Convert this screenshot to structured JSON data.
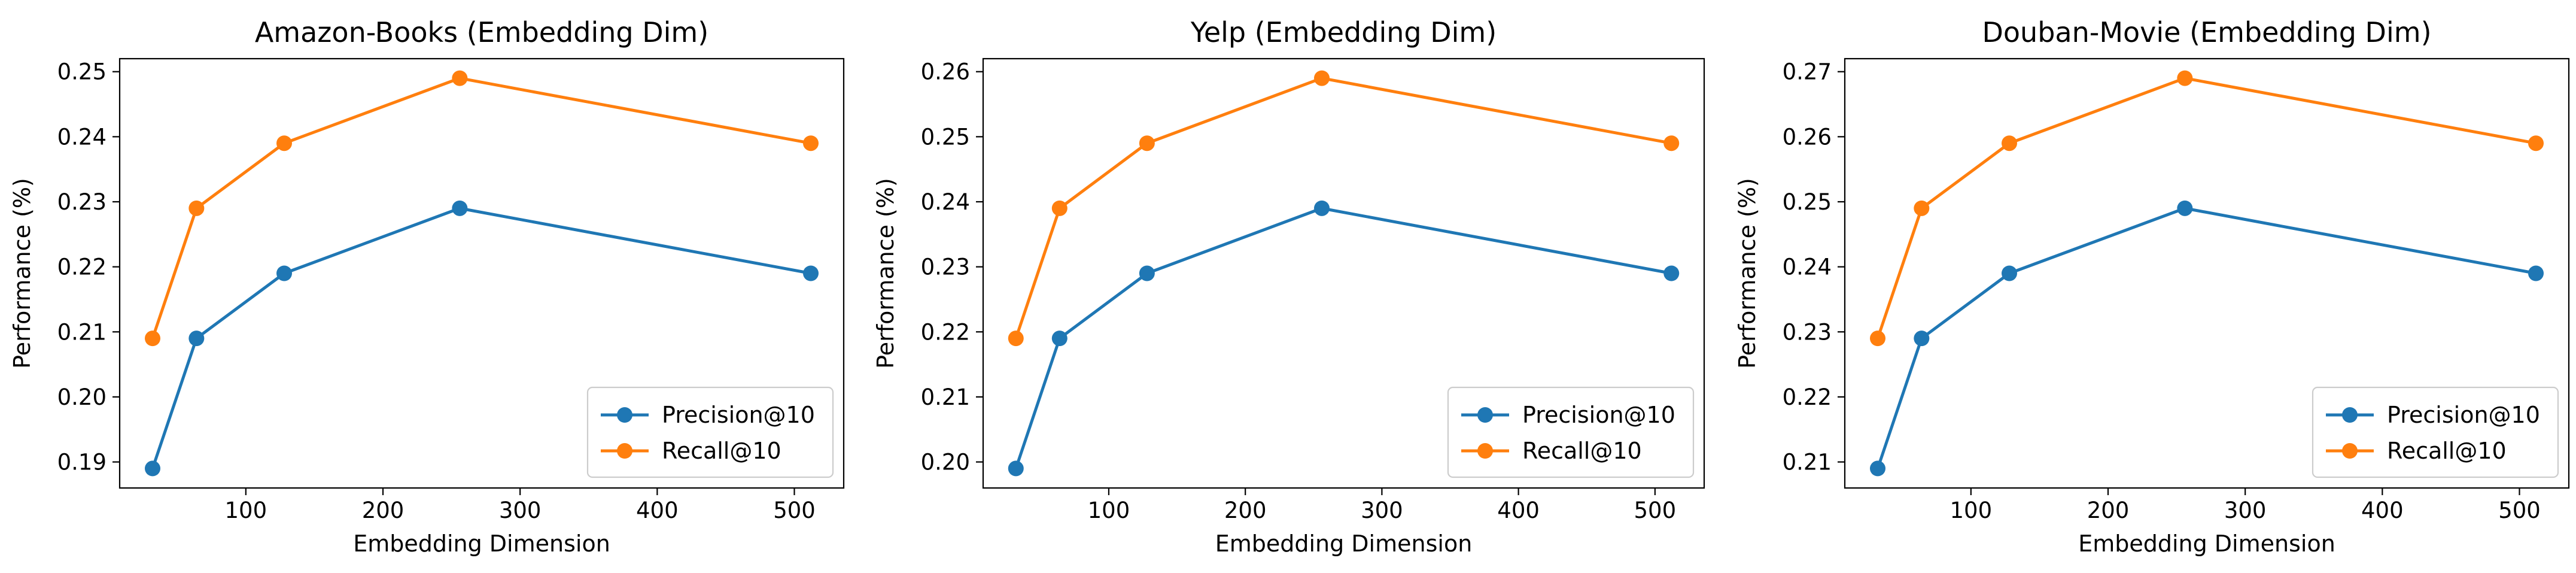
{
  "chart_data": [
    {
      "type": "line",
      "title": "Amazon-Books (Embedding Dim)",
      "xlabel": "Embedding Dimension",
      "ylabel": "Performance (%)",
      "x": [
        32,
        64,
        128,
        256,
        512
      ],
      "xlim": [
        8,
        536
      ],
      "xticks": [
        100,
        200,
        300,
        400,
        500
      ],
      "ylim": [
        0.186,
        0.252
      ],
      "yticks": [
        0.19,
        0.2,
        0.21,
        0.22,
        0.23,
        0.24,
        0.25
      ],
      "grid": false,
      "legend_position": "lower-right",
      "series": [
        {
          "name": "Precision@10",
          "color": "#1f77b4",
          "values": [
            0.189,
            0.209,
            0.219,
            0.229,
            0.219
          ]
        },
        {
          "name": "Recall@10",
          "color": "#ff7f0e",
          "values": [
            0.209,
            0.229,
            0.239,
            0.249,
            0.239
          ]
        }
      ]
    },
    {
      "type": "line",
      "title": "Yelp (Embedding Dim)",
      "xlabel": "Embedding Dimension",
      "ylabel": "Performance (%)",
      "x": [
        32,
        64,
        128,
        256,
        512
      ],
      "xlim": [
        8,
        536
      ],
      "xticks": [
        100,
        200,
        300,
        400,
        500
      ],
      "ylim": [
        0.196,
        0.262
      ],
      "yticks": [
        0.2,
        0.21,
        0.22,
        0.23,
        0.24,
        0.25,
        0.26
      ],
      "grid": false,
      "legend_position": "lower-right",
      "series": [
        {
          "name": "Precision@10",
          "color": "#1f77b4",
          "values": [
            0.199,
            0.219,
            0.229,
            0.239,
            0.229
          ]
        },
        {
          "name": "Recall@10",
          "color": "#ff7f0e",
          "values": [
            0.219,
            0.239,
            0.249,
            0.259,
            0.249
          ]
        }
      ]
    },
    {
      "type": "line",
      "title": "Douban-Movie (Embedding Dim)",
      "xlabel": "Embedding Dimension",
      "ylabel": "Performance (%)",
      "x": [
        32,
        64,
        128,
        256,
        512
      ],
      "xlim": [
        8,
        536
      ],
      "xticks": [
        100,
        200,
        300,
        400,
        500
      ],
      "ylim": [
        0.206,
        0.272
      ],
      "yticks": [
        0.21,
        0.22,
        0.23,
        0.24,
        0.25,
        0.26,
        0.27
      ],
      "grid": false,
      "legend_position": "lower-right",
      "series": [
        {
          "name": "Precision@10",
          "color": "#1f77b4",
          "values": [
            0.209,
            0.229,
            0.239,
            0.249,
            0.239
          ]
        },
        {
          "name": "Recall@10",
          "color": "#ff7f0e",
          "values": [
            0.229,
            0.249,
            0.259,
            0.269,
            0.259
          ]
        }
      ]
    }
  ]
}
